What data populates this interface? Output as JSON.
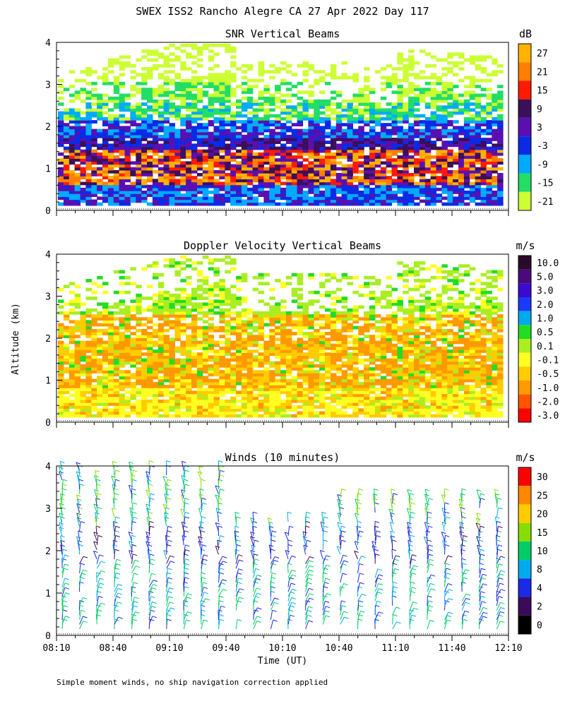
{
  "figure": {
    "title": "SWEX ISS2 Rancho Alegre CA  27 Apr 2022 Day 117",
    "ylabel": "Altitude (km)",
    "xlabel": "Time (UT)",
    "footnote": "Simple moment winds, no ship navigation correction applied"
  },
  "chart_data": [
    {
      "type": "heatmap",
      "title": "SNR Vertical Beams",
      "unit": "dB",
      "x_ticks": [
        "08:10",
        "08:40",
        "09:10",
        "09:40",
        "10:10",
        "10:40",
        "11:10",
        "11:40",
        "12:10"
      ],
      "y_ticks": [
        "0",
        "1",
        "2",
        "3",
        "4"
      ],
      "ylim": [
        0,
        4
      ],
      "colorbar": {
        "labels": [
          "27",
          "21",
          "15",
          "9",
          "3",
          "-3",
          "-9",
          "-15",
          "-21"
        ],
        "colors": [
          "#ffb300",
          "#ff7f00",
          "#ff1a00",
          "#3c0f5a",
          "#5a10b0",
          "#0a2ae6",
          "#00aaff",
          "#22dd66",
          "#ccff33"
        ]
      },
      "layers": [
        {
          "altitude_km": [
            2.3,
            3.3
          ],
          "value_db": -18,
          "description": "high weak returns"
        },
        {
          "altitude_km": [
            1.7,
            2.3
          ],
          "value_db": -10
        },
        {
          "altitude_km": [
            0.2,
            1.6
          ],
          "value_db": 20,
          "description": "strong returns"
        },
        {
          "altitude_km": [
            0.1,
            0.6
          ],
          "value_db": 0
        }
      ]
    },
    {
      "type": "heatmap",
      "title": "Doppler Velocity Vertical Beams",
      "unit": "m/s",
      "x_ticks": [
        "08:10",
        "08:40",
        "09:10",
        "09:40",
        "10:10",
        "10:40",
        "11:10",
        "11:40",
        "12:10"
      ],
      "y_ticks": [
        "0",
        "1",
        "2",
        "3",
        "4"
      ],
      "ylim": [
        0,
        4
      ],
      "colorbar": {
        "labels": [
          "10.0",
          "5.0",
          "3.0",
          "2.0",
          "1.0",
          "0.5",
          "0.1",
          "-0.1",
          "-0.5",
          "-1.0",
          "-2.0",
          "-3.0"
        ],
        "colors": [
          "#2a0a2a",
          "#4a0a7a",
          "#3a0ad0",
          "#1a3aff",
          "#00aaee",
          "#22dd22",
          "#aaee22",
          "#ffff22",
          "#ffcc00",
          "#ff9900",
          "#ff5500",
          "#ff0000"
        ]
      },
      "layers": [
        {
          "altitude_km": [
            0.1,
            0.8
          ],
          "value_ms": -0.1
        },
        {
          "altitude_km": [
            0.8,
            2.3
          ],
          "value_ms": -0.5
        },
        {
          "altitude_km": [
            2.8,
            3.3
          ],
          "value_ms": 0.1
        }
      ]
    },
    {
      "type": "wind-barbs",
      "title": "Winds (10 minutes)",
      "unit": "m/s",
      "x_ticks": [
        "08:10",
        "08:40",
        "09:10",
        "09:40",
        "10:10",
        "10:40",
        "11:10",
        "11:40",
        "12:10"
      ],
      "y_ticks": [
        "0",
        "1",
        "2",
        "3",
        "4"
      ],
      "ylim": [
        0,
        4
      ],
      "colorbar": {
        "labels": [
          "30",
          "25",
          "20",
          "15",
          "10",
          "8",
          "4",
          "2",
          "0"
        ],
        "colors": [
          "#ff0000",
          "#ff8800",
          "#ffcc00",
          "#88dd00",
          "#00cc66",
          "#00aaee",
          "#1a2ae6",
          "#3c0a5a",
          "#000000"
        ]
      }
    }
  ]
}
